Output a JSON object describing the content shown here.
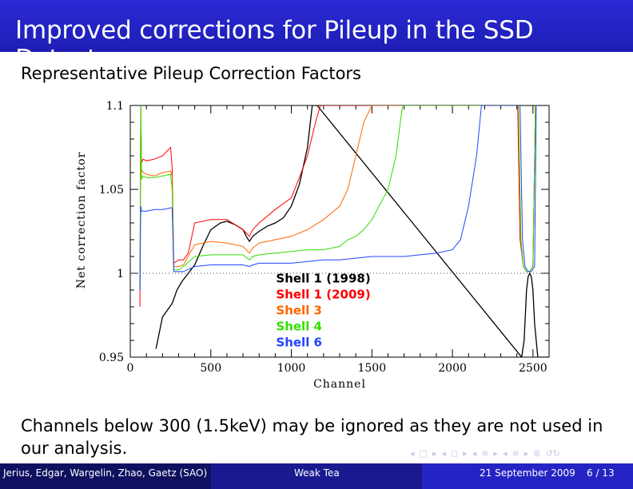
{
  "slide": {
    "title": "Improved corrections for Pileup in the SSD Detectors",
    "subtitle": "Representative Pileup Correction Factors",
    "note": "Channels below 300 (1.5keV) may be ignored as they are not used in our analysis."
  },
  "footer": {
    "authors": "Jerius, Edgar, Wargelin, Zhao, Gaetz  (SAO)",
    "talk": "Weak Tea",
    "date": "21 September 2009",
    "page": "6 / 13"
  },
  "nav": [
    "◂",
    "□",
    "▸",
    "◂",
    "◻",
    "▸",
    "◂",
    "≡",
    "▸",
    "◂",
    "≡",
    "▸",
    "≣",
    "↺↻"
  ],
  "colors": {
    "title_bar": "#1d1db4",
    "shell1_1998": "#000000",
    "shell1_2009": "#ff0000",
    "shell3": "#ff6600",
    "shell4": "#33dd00",
    "shell6": "#2244ff"
  },
  "chart_data": {
    "type": "line",
    "xlabel": "Channel",
    "ylabel": "Net correction factor",
    "xlim": [
      0,
      2600
    ],
    "ylim": [
      0.95,
      1.1
    ],
    "xticks": [
      "0",
      "500",
      "1000",
      "1500",
      "2000",
      "2500"
    ],
    "xtick_values": [
      0,
      500,
      1000,
      1500,
      2000,
      2500
    ],
    "yticks": [
      "0.95",
      "1",
      "1.05",
      "1.1"
    ],
    "ytick_values": [
      0.95,
      1.0,
      1.05,
      1.1
    ],
    "reference_line": 1.0,
    "series": [
      {
        "name": "Shell 1 (1998)",
        "color": "#000000",
        "x": [
          160,
          200,
          230,
          260,
          290,
          320,
          360,
          400,
          450,
          500,
          560,
          600,
          650,
          700,
          720,
          740,
          760,
          800,
          850,
          900,
          950,
          1000,
          1050,
          1100,
          1130,
          1145,
          1160,
          2430,
          2445,
          2460,
          2470,
          2480,
          2490,
          2500,
          2510,
          2530,
          2560,
          2600
        ],
        "y": [
          0.955,
          0.974,
          0.978,
          0.982,
          0.99,
          0.995,
          1.0,
          1.005,
          1.016,
          1.026,
          1.03,
          1.031,
          1.029,
          1.026,
          1.022,
          1.019,
          1.022,
          1.025,
          1.028,
          1.03,
          1.033,
          1.04,
          1.053,
          1.075,
          1.1,
          1.1,
          1.1,
          0.95,
          0.96,
          0.99,
          0.998,
          1.0,
          0.998,
          0.99,
          0.97,
          0.95,
          0.95,
          0.95
        ]
      },
      {
        "name": "Shell 1 (2009)",
        "color": "#ff0000",
        "x": [
          60,
          65,
          70,
          80,
          100,
          150,
          200,
          250,
          260,
          270,
          300,
          330,
          360,
          400,
          500,
          600,
          700,
          740,
          760,
          800,
          900,
          1000,
          1050,
          1100,
          1150,
          1180,
          1200,
          2405,
          2420,
          2440,
          2460,
          2480,
          2500,
          2515,
          2530
        ],
        "y": [
          0.98,
          1.1,
          1.066,
          1.068,
          1.067,
          1.068,
          1.07,
          1.075,
          1.063,
          1.006,
          1.008,
          1.008,
          1.012,
          1.03,
          1.032,
          1.032,
          1.026,
          1.022,
          1.026,
          1.03,
          1.038,
          1.045,
          1.057,
          1.07,
          1.09,
          1.1,
          1.1,
          1.1,
          1.02,
          1.004,
          1.001,
          1.001,
          1.004,
          1.1,
          1.1
        ]
      },
      {
        "name": "Shell 3",
        "color": "#ff6600",
        "x": [
          60,
          65,
          70,
          80,
          100,
          150,
          200,
          250,
          260,
          270,
          300,
          330,
          400,
          500,
          600,
          700,
          740,
          760,
          800,
          900,
          1000,
          1100,
          1200,
          1300,
          1350,
          1400,
          1450,
          1500,
          1530,
          1560,
          1570,
          2410,
          2425,
          2440,
          2460,
          2480,
          2500,
          2515,
          2530
        ],
        "y": [
          0.99,
          1.1,
          1.062,
          1.06,
          1.059,
          1.058,
          1.06,
          1.061,
          1.058,
          1.004,
          1.004,
          1.005,
          1.017,
          1.019,
          1.018,
          1.016,
          1.012,
          1.015,
          1.018,
          1.02,
          1.022,
          1.026,
          1.032,
          1.04,
          1.05,
          1.07,
          1.09,
          1.1,
          1.1,
          1.1,
          1.1,
          1.1,
          1.02,
          1.004,
          1.001,
          1.001,
          1.004,
          1.1,
          1.1
        ]
      },
      {
        "name": "Shell 4",
        "color": "#33dd00",
        "x": [
          60,
          65,
          70,
          80,
          100,
          150,
          200,
          250,
          260,
          270,
          300,
          330,
          400,
          500,
          600,
          700,
          740,
          760,
          800,
          900,
          1000,
          1100,
          1200,
          1300,
          1350,
          1400,
          1450,
          1500,
          1600,
          1650,
          1690,
          1700,
          2410,
          2425,
          2440,
          2460,
          2480,
          2500,
          2515,
          2530
        ],
        "y": [
          0.99,
          1.1,
          1.056,
          1.058,
          1.057,
          1.057,
          1.058,
          1.059,
          1.05,
          1.002,
          1.002,
          1.004,
          1.01,
          1.011,
          1.011,
          1.011,
          1.008,
          1.01,
          1.011,
          1.012,
          1.013,
          1.014,
          1.014,
          1.016,
          1.02,
          1.022,
          1.026,
          1.032,
          1.05,
          1.07,
          1.1,
          1.1,
          1.1,
          1.02,
          1.004,
          1.001,
          1.001,
          1.004,
          1.1,
          1.1
        ]
      },
      {
        "name": "Shell 6",
        "color": "#2244ff",
        "x": [
          60,
          65,
          70,
          80,
          100,
          150,
          200,
          250,
          260,
          270,
          300,
          330,
          400,
          500,
          600,
          700,
          740,
          760,
          800,
          900,
          1000,
          1100,
          1200,
          1300,
          1400,
          1500,
          1600,
          1700,
          1800,
          1900,
          2000,
          2050,
          2100,
          2150,
          2180,
          2200,
          2420,
          2435,
          2450,
          2470,
          2490,
          2510,
          2520,
          2530
        ],
        "y": [
          0.99,
          1.04,
          1.037,
          1.037,
          1.037,
          1.038,
          1.038,
          1.039,
          1.039,
          1.001,
          1.001,
          1.001,
          1.004,
          1.005,
          1.005,
          1.005,
          1.004,
          1.005,
          1.006,
          1.006,
          1.006,
          1.007,
          1.008,
          1.008,
          1.009,
          1.01,
          1.01,
          1.01,
          1.011,
          1.012,
          1.014,
          1.02,
          1.04,
          1.07,
          1.1,
          1.1,
          1.1,
          1.02,
          1.004,
          1.001,
          1.001,
          1.004,
          1.1,
          1.1
        ]
      }
    ],
    "legend": [
      "Shell 1 (1998)",
      "Shell 1 (2009)",
      "Shell 3",
      "Shell 4",
      "Shell 6"
    ],
    "legend_position": "bottom-center"
  }
}
